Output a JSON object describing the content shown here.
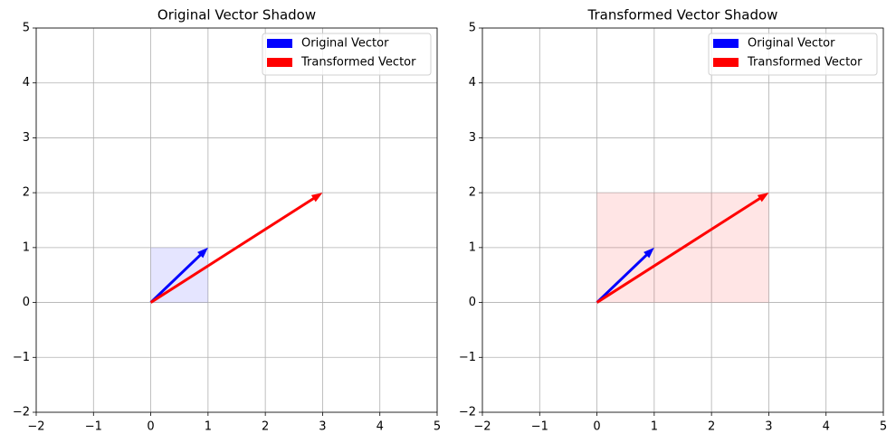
{
  "chart_data": [
    {
      "type": "vector",
      "title": "Original Vector Shadow",
      "origin": [
        0,
        0
      ],
      "series": [
        {
          "name": "Original Vector",
          "color": "#0000ff",
          "x": 1,
          "y": 1
        },
        {
          "name": "Transformed Vector",
          "color": "#ff0000",
          "x": 3,
          "y": 2
        }
      ],
      "shadow": {
        "x": 1,
        "y": 1,
        "color": "#0000ff"
      },
      "xlim": [
        -2,
        5
      ],
      "ylim": [
        -2,
        5
      ],
      "xticks": [
        {
          "value": -2,
          "label": "−2"
        },
        {
          "value": -1,
          "label": "−1"
        },
        0,
        1,
        2,
        3,
        4,
        5
      ],
      "yticks": [
        {
          "value": -2,
          "label": "−2"
        },
        {
          "value": -1,
          "label": "−1"
        },
        0,
        1,
        2,
        3,
        4,
        5
      ],
      "grid": true,
      "legend": "upper right"
    },
    {
      "type": "vector",
      "title": "Transformed Vector Shadow",
      "origin": [
        0,
        0
      ],
      "series": [
        {
          "name": "Original Vector",
          "color": "#0000ff",
          "x": 1,
          "y": 1
        },
        {
          "name": "Transformed Vector",
          "color": "#ff0000",
          "x": 3,
          "y": 2
        }
      ],
      "shadow": {
        "x": 3,
        "y": 2,
        "color": "#ff0000"
      },
      "xlim": [
        -2,
        5
      ],
      "ylim": [
        -2,
        5
      ],
      "xticks": [
        {
          "value": -2,
          "label": "−2"
        },
        {
          "value": -1,
          "label": "−1"
        },
        0,
        1,
        2,
        3,
        4,
        5
      ],
      "yticks": [
        {
          "value": -2,
          "label": "−2"
        },
        {
          "value": -1,
          "label": "−1"
        },
        0,
        1,
        2,
        3,
        4,
        5
      ],
      "grid": true,
      "legend": "upper right"
    }
  ]
}
